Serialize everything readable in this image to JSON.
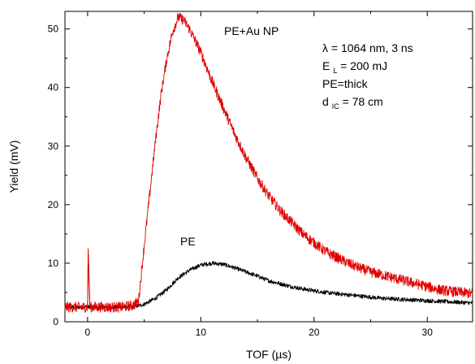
{
  "chart_data": {
    "type": "line",
    "xlabel": "TOF (µs)",
    "ylabel": "Yield (mV)",
    "xlim": [
      -2,
      34
    ],
    "ylim": [
      0,
      53
    ],
    "xticks": [
      0,
      10,
      20,
      30
    ],
    "yticks": [
      0,
      10,
      20,
      30,
      40,
      50
    ],
    "grid": false,
    "annotations": {
      "lambda": "λ = 1064 nm, 3 ns",
      "energy_symbol": "E",
      "energy_sub": "L",
      "energy_value": "= 200 mJ",
      "target": "PE=thick",
      "distance_symbol": "d",
      "distance_sub": "IC",
      "distance_value": "= 78 cm"
    },
    "series": [
      {
        "name": "PE+Au NP",
        "color": "#e00000",
        "x": [
          -2,
          0,
          0.05,
          0.2,
          1,
          2,
          3,
          4,
          4.5,
          5,
          5.5,
          6,
          6.5,
          7,
          7.5,
          8,
          8.5,
          9,
          10,
          11,
          12,
          13,
          14,
          15,
          16,
          17,
          18,
          19,
          20,
          21,
          22,
          23,
          24,
          25,
          26,
          27,
          28,
          29,
          30,
          31,
          32,
          33,
          34
        ],
        "y": [
          2.5,
          2.5,
          12.5,
          2.5,
          2.5,
          2.5,
          2.5,
          2.8,
          3.5,
          13,
          22,
          31,
          39,
          45,
          49.5,
          52,
          51.5,
          50,
          46,
          41,
          36.5,
          32,
          28,
          24.5,
          21.5,
          19,
          17,
          15,
          13.5,
          12,
          11,
          10,
          9.2,
          8.5,
          8,
          7.5,
          7,
          6.5,
          6,
          5.5,
          5.2,
          5,
          4.8
        ]
      },
      {
        "name": "PE",
        "color": "#000000",
        "x": [
          -2,
          0,
          2,
          4,
          5,
          6,
          7,
          8,
          9,
          10,
          11,
          12,
          13,
          14,
          15,
          16,
          17,
          18,
          19,
          20,
          21,
          22,
          23,
          24,
          25,
          26,
          27,
          28,
          29,
          30,
          31,
          32,
          33,
          34
        ],
        "y": [
          2.5,
          2.5,
          2.5,
          2.5,
          3,
          4,
          5.5,
          7.5,
          8.8,
          9.7,
          10,
          9.8,
          9.2,
          8.5,
          7.8,
          7,
          6.5,
          6,
          5.6,
          5.3,
          5,
          4.8,
          4.6,
          4.4,
          4.2,
          4,
          3.9,
          3.8,
          3.7,
          3.6,
          3.5,
          3.4,
          3.3,
          3.2
        ]
      }
    ]
  }
}
